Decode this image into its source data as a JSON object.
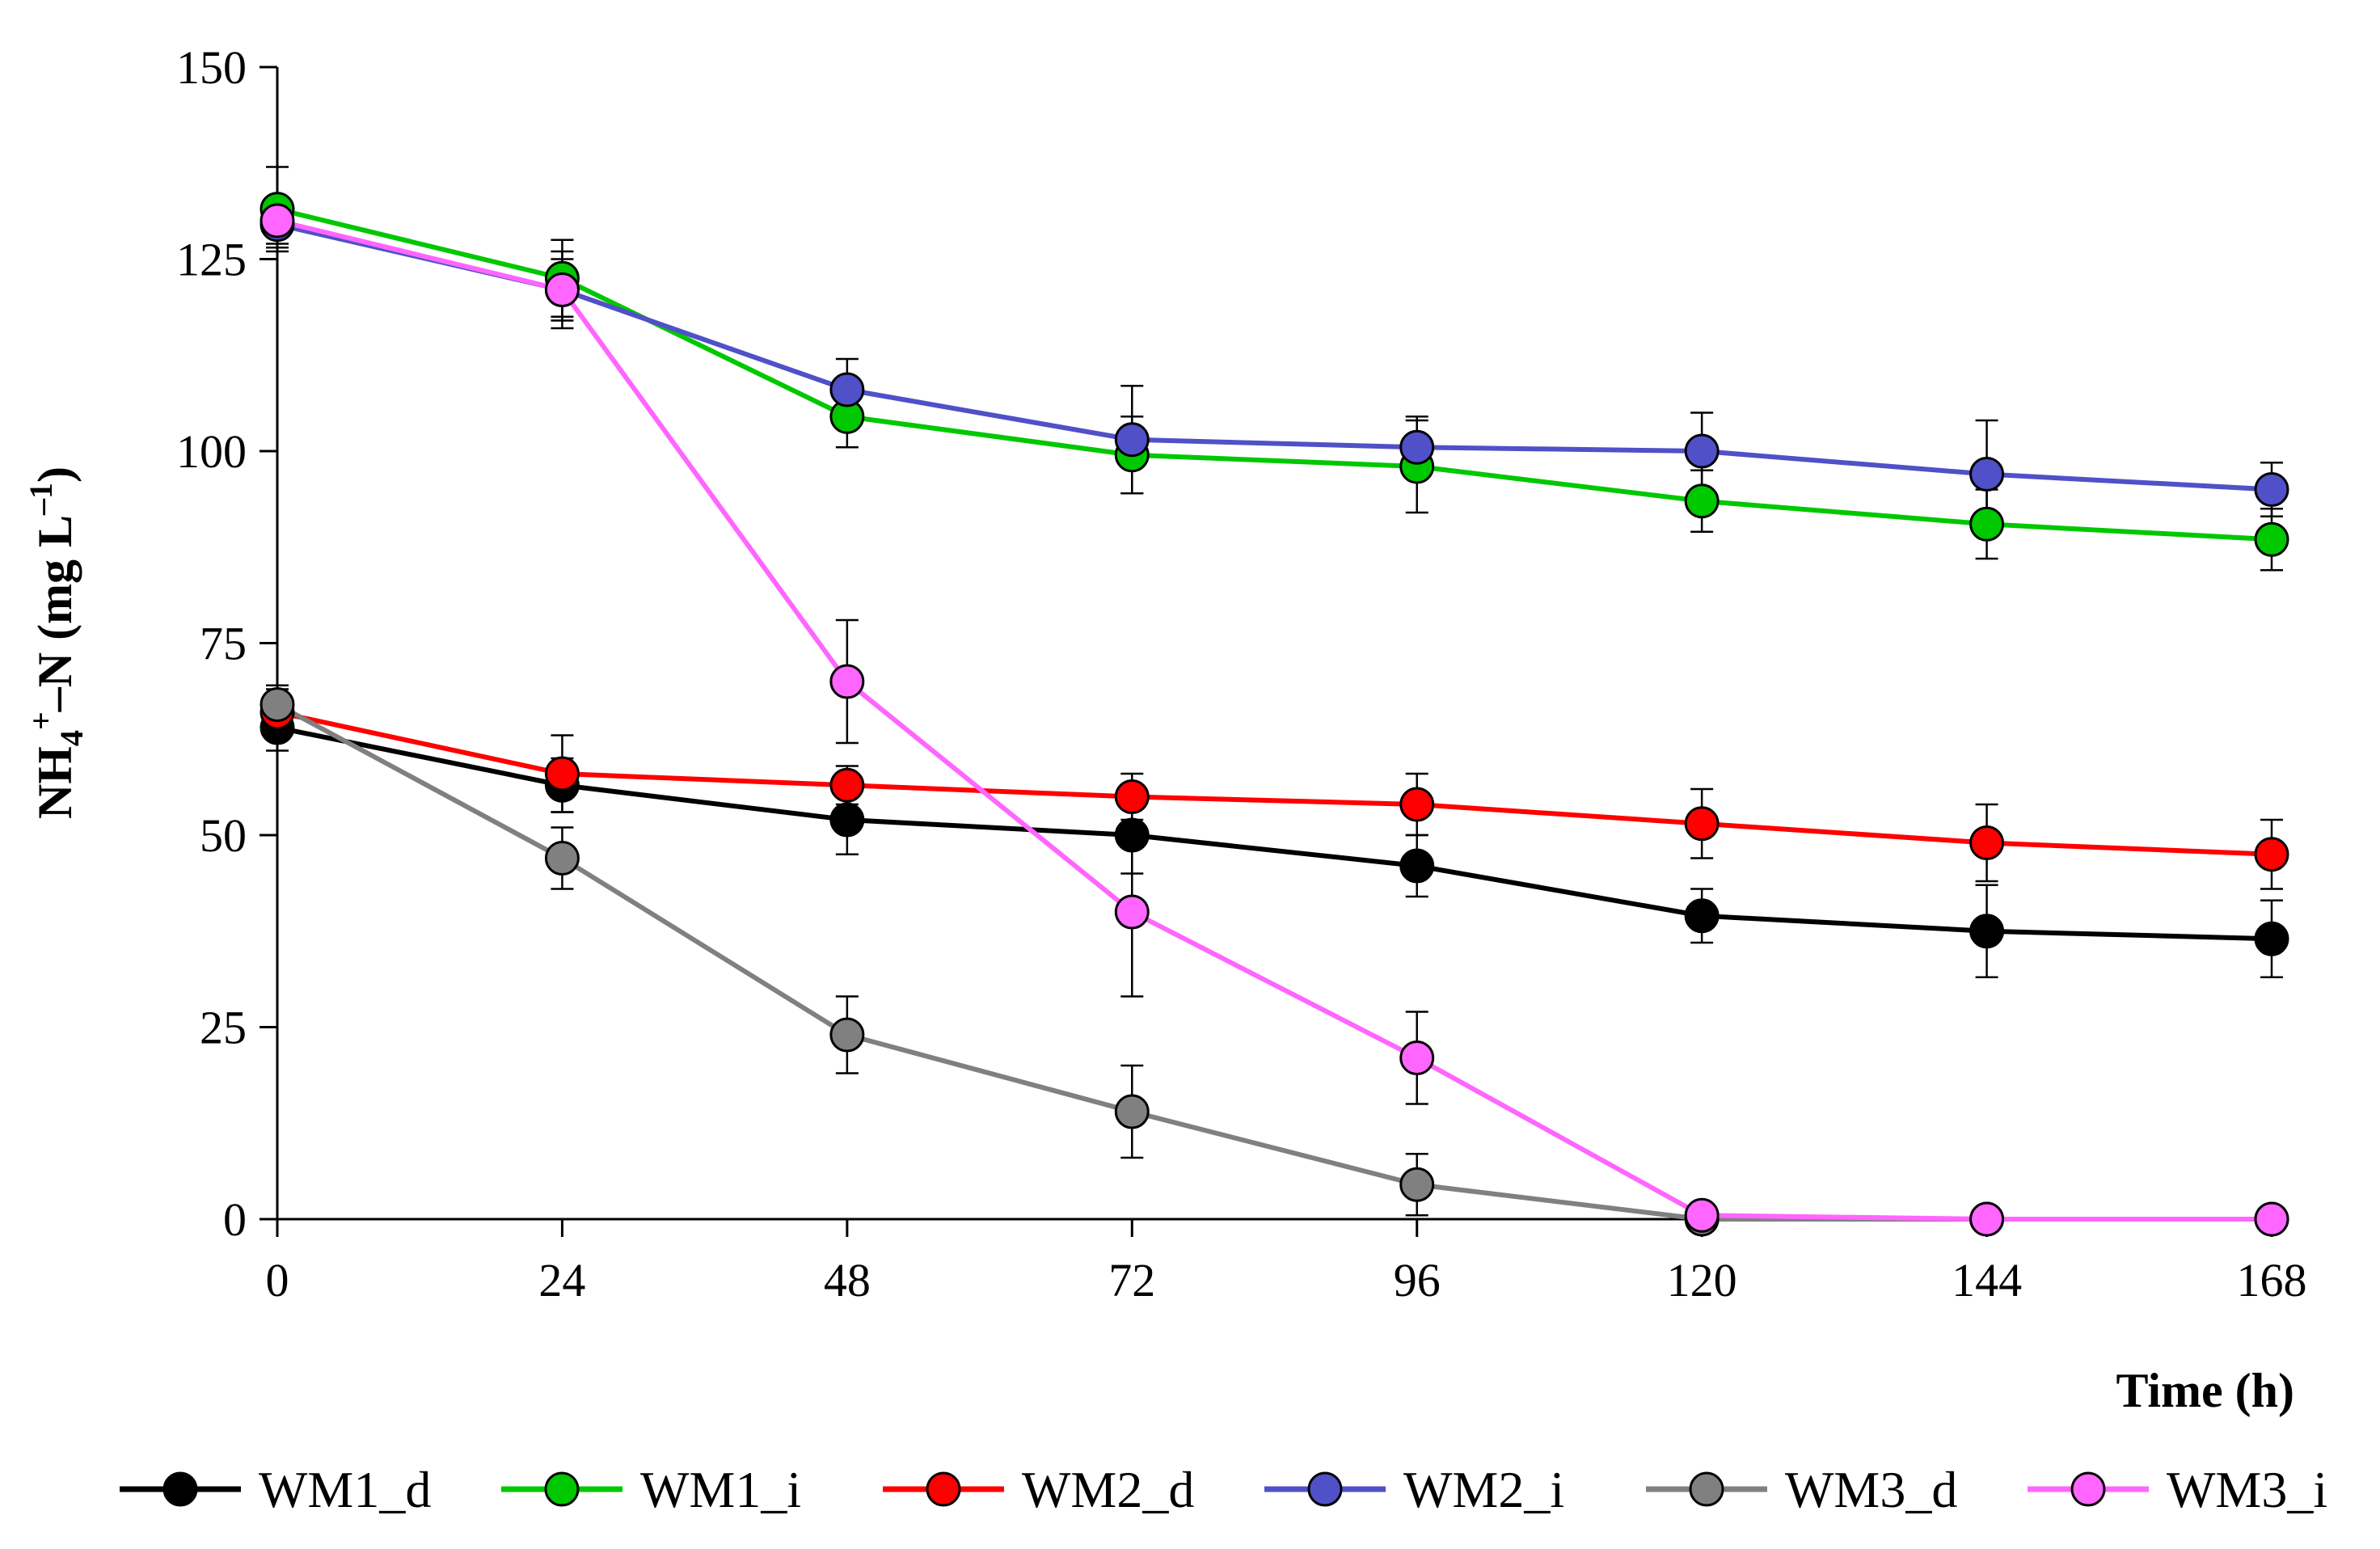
{
  "chart_data": {
    "type": "line",
    "x": [
      0,
      24,
      48,
      72,
      96,
      120,
      144,
      168
    ],
    "xlim": [
      0,
      168
    ],
    "ylim": [
      0,
      150
    ],
    "xticks": [
      "0",
      "24",
      "48",
      "72",
      "96",
      "120",
      "144",
      "168"
    ],
    "yticks": [
      "0",
      "25",
      "50",
      "75",
      "100",
      "125",
      "150"
    ],
    "xlabel": "Time (h)",
    "ylabel": {
      "base": "NH",
      "sub": "4",
      "sup": "+",
      "rest": "–N (mg L",
      "sup2": "–1",
      "close": ")"
    },
    "legend_position": "bottom",
    "series": [
      {
        "name": "WM1_d",
        "color": "#000000",
        "values": [
          64,
          56.5,
          52,
          50,
          46,
          39.5,
          37.5,
          36.5
        ],
        "errors": [
          3,
          3.5,
          4.5,
          5,
          4,
          3.5,
          6,
          5
        ]
      },
      {
        "name": "WM1_i",
        "color": "#00c800",
        "values": [
          131.5,
          122.5,
          104.5,
          99.5,
          98,
          93.5,
          90.5,
          88.5
        ],
        "errors": [
          5.5,
          5,
          4,
          5,
          6,
          4,
          4.5,
          4
        ]
      },
      {
        "name": "WM2_d",
        "color": "#ff0000",
        "values": [
          66,
          58,
          56.5,
          55,
          54,
          51.5,
          49,
          47.5
        ],
        "errors": [
          3,
          5,
          2.5,
          3,
          4,
          4.5,
          5,
          4.5
        ]
      },
      {
        "name": "WM2_i",
        "color": "#5050c8",
        "values": [
          129.5,
          121,
          108,
          101.5,
          100.5,
          100,
          97,
          95
        ],
        "errors": [
          3,
          5,
          4,
          7,
          4,
          5,
          7,
          3.5
        ]
      },
      {
        "name": "WM3_d",
        "color": "#808080",
        "values": [
          67,
          47,
          24,
          14,
          4.5,
          0,
          0,
          0
        ],
        "errors": [
          2.5,
          4,
          5,
          6,
          4,
          0,
          0,
          0
        ]
      },
      {
        "name": "WM3_i",
        "color": "#ff66ff",
        "values": [
          130,
          121,
          70,
          40,
          21,
          0.5,
          0,
          0
        ],
        "errors": [
          3,
          4,
          8,
          11,
          6,
          0,
          0,
          0
        ]
      }
    ]
  }
}
